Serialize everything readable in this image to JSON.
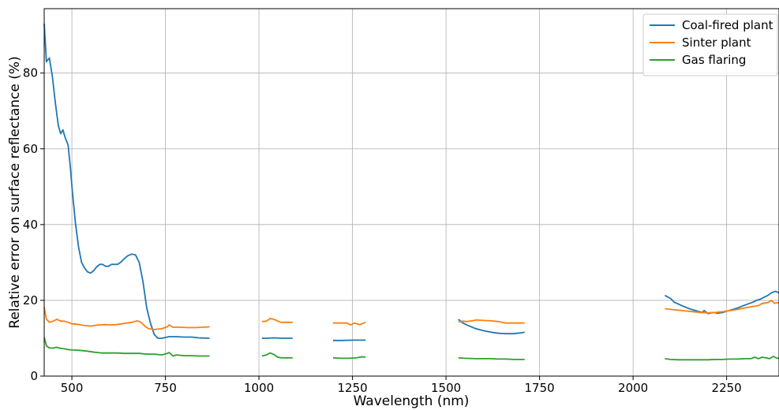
{
  "chart_data": {
    "type": "line",
    "xlabel": "Wavelength (nm)",
    "ylabel": "Relative error on surface reflectance (%)",
    "xlim": [
      426,
      2390
    ],
    "ylim": [
      0,
      97
    ],
    "x_ticks": [
      500,
      750,
      1000,
      1250,
      1500,
      1750,
      2000,
      2250
    ],
    "y_ticks": [
      0,
      20,
      40,
      60,
      80
    ],
    "grid": true,
    "legend_position": "top-right",
    "series": [
      {
        "name": "Coal-fired plant",
        "color": "#1f77b4",
        "segments": [
          [
            [
              426,
              93
            ],
            [
              432,
              83
            ],
            [
              440,
              84
            ],
            [
              448,
              79
            ],
            [
              456,
              72
            ],
            [
              464,
              66
            ],
            [
              470,
              64
            ],
            [
              476,
              65
            ],
            [
              482,
              63
            ],
            [
              490,
              61
            ],
            [
              496,
              55
            ],
            [
              502,
              48
            ],
            [
              510,
              40
            ],
            [
              518,
              34
            ],
            [
              526,
              30
            ],
            [
              534,
              28.5
            ],
            [
              542,
              27.5
            ],
            [
              550,
              27.2
            ],
            [
              558,
              27.8
            ],
            [
              566,
              28.8
            ],
            [
              574,
              29.5
            ],
            [
              582,
              29.5
            ],
            [
              590,
              29
            ],
            [
              598,
              29
            ],
            [
              606,
              29.5
            ],
            [
              614,
              29.5
            ],
            [
              622,
              29.5
            ],
            [
              630,
              30
            ],
            [
              640,
              31
            ],
            [
              650,
              31.8
            ],
            [
              660,
              32.2
            ],
            [
              670,
              32
            ],
            [
              680,
              30
            ],
            [
              690,
              25
            ],
            [
              700,
              18
            ],
            [
              710,
              14
            ],
            [
              720,
              11
            ],
            [
              730,
              10
            ],
            [
              740,
              10
            ],
            [
              750,
              10.2
            ],
            [
              760,
              10.4
            ],
            [
              780,
              10.4
            ],
            [
              800,
              10.3
            ],
            [
              820,
              10.3
            ],
            [
              840,
              10.1
            ],
            [
              868,
              10
            ]
          ],
          [
            [
              1008,
              10
            ],
            [
              1020,
              10
            ],
            [
              1040,
              10.1
            ],
            [
              1060,
              10
            ],
            [
              1090,
              10
            ]
          ],
          [
            [
              1198,
              9.4
            ],
            [
              1220,
              9.4
            ],
            [
              1250,
              9.5
            ],
            [
              1285,
              9.5
            ]
          ],
          [
            [
              1533,
              15
            ],
            [
              1545,
              14
            ],
            [
              1560,
              13.3
            ],
            [
              1580,
              12.5
            ],
            [
              1600,
              12
            ],
            [
              1620,
              11.6
            ],
            [
              1640,
              11.3
            ],
            [
              1660,
              11.2
            ],
            [
              1680,
              11.2
            ],
            [
              1700,
              11.4
            ],
            [
              1710,
              11.6
            ]
          ],
          [
            [
              2085,
              21.3
            ],
            [
              2100,
              20.5
            ],
            [
              2110,
              19.5
            ],
            [
              2130,
              18.6
            ],
            [
              2150,
              17.8
            ],
            [
              2170,
              17.2
            ],
            [
              2185,
              16.8
            ],
            [
              2190,
              17.3
            ],
            [
              2200,
              16.5
            ],
            [
              2215,
              16.8
            ],
            [
              2225,
              16.6
            ],
            [
              2240,
              16.8
            ],
            [
              2260,
              17.4
            ],
            [
              2280,
              18
            ],
            [
              2300,
              18.8
            ],
            [
              2320,
              19.5
            ],
            [
              2330,
              20
            ],
            [
              2340,
              20.3
            ],
            [
              2350,
              20.8
            ],
            [
              2360,
              21.3
            ],
            [
              2370,
              22
            ],
            [
              2380,
              22.4
            ],
            [
              2390,
              22
            ]
          ]
        ]
      },
      {
        "name": "Sinter plant",
        "color": "#ff7f0e",
        "segments": [
          [
            [
              426,
              18.2
            ],
            [
              432,
              15
            ],
            [
              440,
              14.2
            ],
            [
              450,
              14.5
            ],
            [
              460,
              15
            ],
            [
              470,
              14.5
            ],
            [
              480,
              14.5
            ],
            [
              490,
              14.2
            ],
            [
              500,
              13.8
            ],
            [
              520,
              13.6
            ],
            [
              530,
              13.4
            ],
            [
              550,
              13.2
            ],
            [
              570,
              13.5
            ],
            [
              590,
              13.6
            ],
            [
              600,
              13.5
            ],
            [
              620,
              13.6
            ],
            [
              640,
              13.9
            ],
            [
              660,
              14.2
            ],
            [
              675,
              14.6
            ],
            [
              685,
              14.2
            ],
            [
              695,
              13.2
            ],
            [
              705,
              12.5
            ],
            [
              720,
              12.3
            ],
            [
              740,
              12.5
            ],
            [
              755,
              13
            ],
            [
              760,
              13.5
            ],
            [
              770,
              12.9
            ],
            [
              790,
              12.9
            ],
            [
              810,
              12.8
            ],
            [
              830,
              12.8
            ],
            [
              850,
              12.9
            ],
            [
              868,
              13
            ]
          ],
          [
            [
              1008,
              14.4
            ],
            [
              1020,
              14.5
            ],
            [
              1030,
              15.2
            ],
            [
              1040,
              15
            ],
            [
              1050,
              14.5
            ],
            [
              1060,
              14.2
            ],
            [
              1075,
              14.2
            ],
            [
              1090,
              14.2
            ]
          ],
          [
            [
              1198,
              14
            ],
            [
              1220,
              14
            ],
            [
              1235,
              14
            ],
            [
              1245,
              13.5
            ],
            [
              1255,
              14
            ],
            [
              1270,
              13.6
            ],
            [
              1285,
              14.2
            ]
          ],
          [
            [
              1533,
              14.3
            ],
            [
              1545,
              14.5
            ],
            [
              1555,
              14.4
            ],
            [
              1570,
              14.6
            ],
            [
              1580,
              14.8
            ],
            [
              1600,
              14.7
            ],
            [
              1620,
              14.6
            ],
            [
              1640,
              14.4
            ],
            [
              1650,
              14.2
            ],
            [
              1660,
              14
            ],
            [
              1680,
              14
            ],
            [
              1700,
              14
            ],
            [
              1710,
              14
            ]
          ],
          [
            [
              2085,
              17.8
            ],
            [
              2100,
              17.6
            ],
            [
              2120,
              17.4
            ],
            [
              2140,
              17.2
            ],
            [
              2160,
              17
            ],
            [
              2180,
              16.8
            ],
            [
              2200,
              16.7
            ],
            [
              2220,
              16.8
            ],
            [
              2240,
              17
            ],
            [
              2260,
              17.3
            ],
            [
              2280,
              17.6
            ],
            [
              2300,
              18
            ],
            [
              2320,
              18.4
            ],
            [
              2335,
              18.6
            ],
            [
              2345,
              19.2
            ],
            [
              2360,
              19.4
            ],
            [
              2370,
              20
            ],
            [
              2378,
              19.2
            ],
            [
              2385,
              19.4
            ],
            [
              2390,
              19.3
            ]
          ]
        ]
      },
      {
        "name": "Gas flaring",
        "color": "#2ca02c",
        "segments": [
          [
            [
              426,
              10.2
            ],
            [
              432,
              8
            ],
            [
              440,
              7.4
            ],
            [
              450,
              7.4
            ],
            [
              460,
              7.6
            ],
            [
              470,
              7.3
            ],
            [
              480,
              7.2
            ],
            [
              490,
              7
            ],
            [
              500,
              6.9
            ],
            [
              520,
              6.8
            ],
            [
              540,
              6.6
            ],
            [
              560,
              6.3
            ],
            [
              580,
              6.1
            ],
            [
              600,
              6.1
            ],
            [
              620,
              6.1
            ],
            [
              640,
              6
            ],
            [
              660,
              6
            ],
            [
              680,
              6
            ],
            [
              700,
              5.8
            ],
            [
              720,
              5.8
            ],
            [
              740,
              5.6
            ],
            [
              755,
              6
            ],
            [
              760,
              6.2
            ],
            [
              770,
              5.3
            ],
            [
              780,
              5.6
            ],
            [
              800,
              5.4
            ],
            [
              820,
              5.4
            ],
            [
              840,
              5.3
            ],
            [
              868,
              5.3
            ]
          ],
          [
            [
              1008,
              5.3
            ],
            [
              1020,
              5.6
            ],
            [
              1030,
              6.1
            ],
            [
              1040,
              5.7
            ],
            [
              1050,
              5
            ],
            [
              1060,
              4.8
            ],
            [
              1075,
              4.8
            ],
            [
              1090,
              4.8
            ]
          ],
          [
            [
              1198,
              4.8
            ],
            [
              1220,
              4.7
            ],
            [
              1240,
              4.7
            ],
            [
              1260,
              4.8
            ],
            [
              1275,
              5.1
            ],
            [
              1285,
              5
            ]
          ],
          [
            [
              1533,
              4.8
            ],
            [
              1550,
              4.7
            ],
            [
              1580,
              4.6
            ],
            [
              1600,
              4.6
            ],
            [
              1620,
              4.6
            ],
            [
              1640,
              4.5
            ],
            [
              1660,
              4.5
            ],
            [
              1680,
              4.4
            ],
            [
              1700,
              4.4
            ],
            [
              1710,
              4.4
            ]
          ],
          [
            [
              2085,
              4.6
            ],
            [
              2100,
              4.4
            ],
            [
              2120,
              4.3
            ],
            [
              2140,
              4.3
            ],
            [
              2160,
              4.3
            ],
            [
              2180,
              4.3
            ],
            [
              2200,
              4.3
            ],
            [
              2220,
              4.4
            ],
            [
              2240,
              4.4
            ],
            [
              2260,
              4.5
            ],
            [
              2280,
              4.5
            ],
            [
              2300,
              4.6
            ],
            [
              2315,
              4.6
            ],
            [
              2325,
              5
            ],
            [
              2335,
              4.6
            ],
            [
              2345,
              5
            ],
            [
              2355,
              4.8
            ],
            [
              2365,
              4.6
            ],
            [
              2375,
              5.2
            ],
            [
              2385,
              4.7
            ],
            [
              2390,
              4.7
            ]
          ]
        ]
      }
    ]
  }
}
